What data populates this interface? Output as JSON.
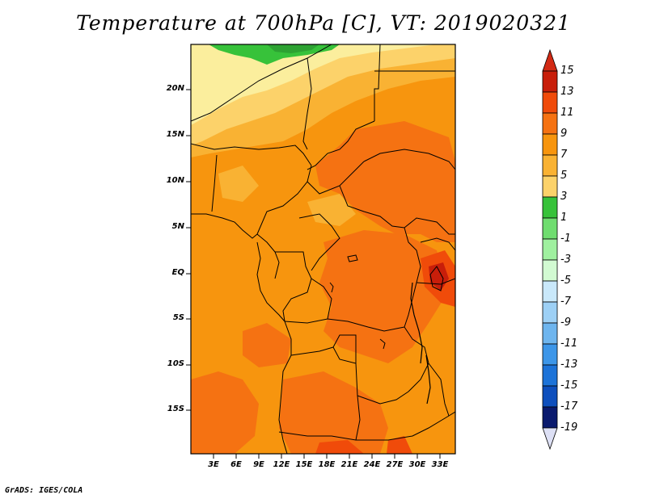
{
  "title": "Temperature at 700hPa [C], VT: 2019020321",
  "footer": "GrADS: IGES/COLA",
  "map": {
    "lat_labels": [
      "20N",
      "15N",
      "10N",
      "5N",
      "EQ",
      "5S",
      "10S",
      "15S"
    ],
    "lon_labels": [
      "3E",
      "6E",
      "9E",
      "12E",
      "15E",
      "18E",
      "21E",
      "24E",
      "27E",
      "30E",
      "33E"
    ],
    "lat_range": [
      -20,
      24.5
    ],
    "lon_range": [
      0,
      35
    ],
    "variable": "Temperature at 700hPa",
    "units": "C",
    "valid_time": "2019020321"
  },
  "colorbar": {
    "labels": [
      "15",
      "13",
      "11",
      "9",
      "7",
      "5",
      "3",
      "1",
      "-1",
      "-3",
      "-5",
      "-7",
      "-9",
      "-11",
      "-13",
      "-15",
      "-17",
      "-19"
    ],
    "colors_top_to_bottom": [
      "#c81e0a",
      "#f04b0a",
      "#f57212",
      "#f7950e",
      "#f9b233",
      "#fcd26a",
      "#fbee9d",
      "#37c23a",
      "#6fdd6f",
      "#9ff09f",
      "#d2fad2",
      "#c9e8fa",
      "#9dd0f5",
      "#6eb5ee",
      "#3d96e8",
      "#1d73d8",
      "#0e4fbd",
      "#0a2c8e",
      "#0a1a6e"
    ],
    "arrow_top_color": "#d22a14",
    "arrow_bottom_color": "#dde0f5"
  }
}
